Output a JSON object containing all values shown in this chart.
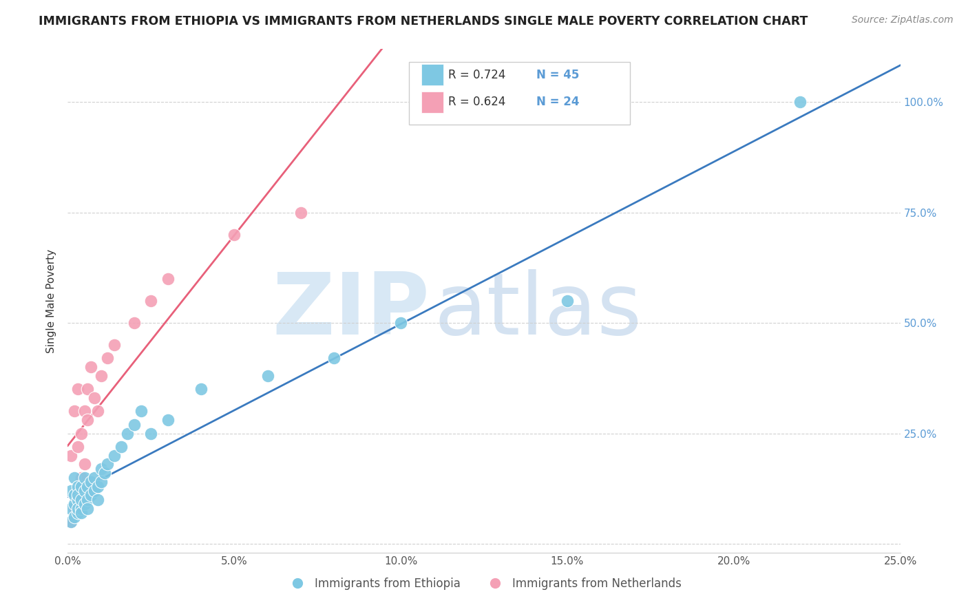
{
  "title": "IMMIGRANTS FROM ETHIOPIA VS IMMIGRANTS FROM NETHERLANDS SINGLE MALE POVERTY CORRELATION CHART",
  "source": "Source: ZipAtlas.com",
  "ylabel": "Single Male Poverty",
  "xlim": [
    0.0,
    0.25
  ],
  "ylim": [
    -0.02,
    1.12
  ],
  "color_ethiopia": "#7ec8e3",
  "color_netherlands": "#f4a0b5",
  "line_color_ethiopia": "#3a7abf",
  "line_color_netherlands": "#e8607a",
  "watermark_zip": "ZIP",
  "watermark_atlas": "atlas",
  "background_color": "#ffffff",
  "grid_color": "#d0d0d0",
  "ethiopia_x": [
    0.001,
    0.001,
    0.001,
    0.002,
    0.002,
    0.002,
    0.002,
    0.003,
    0.003,
    0.003,
    0.003,
    0.003,
    0.004,
    0.004,
    0.004,
    0.004,
    0.005,
    0.005,
    0.005,
    0.006,
    0.006,
    0.006,
    0.007,
    0.007,
    0.008,
    0.008,
    0.009,
    0.009,
    0.01,
    0.01,
    0.011,
    0.012,
    0.014,
    0.016,
    0.018,
    0.02,
    0.022,
    0.025,
    0.03,
    0.04,
    0.06,
    0.08,
    0.1,
    0.15,
    0.22
  ],
  "ethiopia_y": [
    0.05,
    0.08,
    0.12,
    0.06,
    0.09,
    0.11,
    0.15,
    0.07,
    0.1,
    0.13,
    0.08,
    0.11,
    0.08,
    0.1,
    0.13,
    0.07,
    0.09,
    0.12,
    0.15,
    0.1,
    0.13,
    0.08,
    0.11,
    0.14,
    0.12,
    0.15,
    0.13,
    0.1,
    0.14,
    0.17,
    0.16,
    0.18,
    0.2,
    0.22,
    0.25,
    0.27,
    0.3,
    0.25,
    0.28,
    0.35,
    0.38,
    0.42,
    0.5,
    0.55,
    1.0
  ],
  "netherlands_x": [
    0.001,
    0.001,
    0.002,
    0.002,
    0.003,
    0.003,
    0.003,
    0.004,
    0.004,
    0.005,
    0.005,
    0.006,
    0.006,
    0.007,
    0.008,
    0.009,
    0.01,
    0.012,
    0.014,
    0.02,
    0.025,
    0.03,
    0.05,
    0.07
  ],
  "netherlands_y": [
    0.05,
    0.2,
    0.08,
    0.3,
    0.1,
    0.22,
    0.35,
    0.15,
    0.25,
    0.18,
    0.3,
    0.28,
    0.35,
    0.4,
    0.33,
    0.3,
    0.38,
    0.42,
    0.45,
    0.5,
    0.55,
    0.6,
    0.7,
    0.75
  ]
}
